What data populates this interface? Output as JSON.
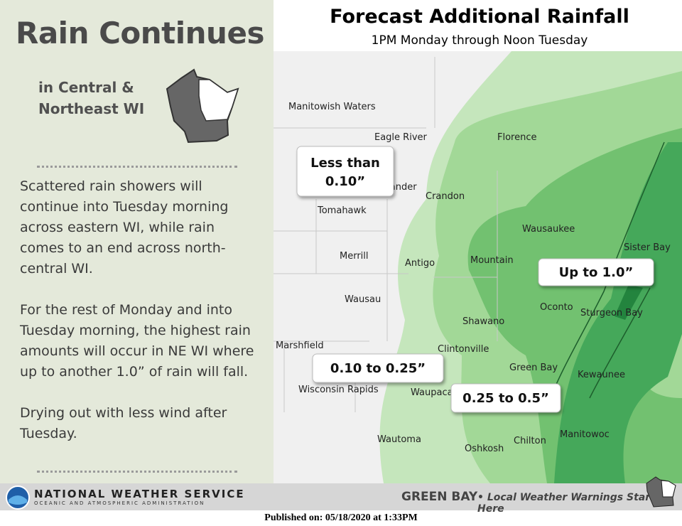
{
  "sidebar": {
    "title": "Rain Continues",
    "subtitle_lines": [
      "in Central &",
      "Northeast WI"
    ],
    "paragraphs": [
      "Scattered rain showers will continue into Tuesday morning across eastern WI, while rain comes to an end across north-central WI.",
      "For the rest of Monday and into Tuesday morning, the highest rain amounts will occur in NE WI where up to another 1.0” of rain will fall.",
      "Drying out with less wind after Tuesday."
    ]
  },
  "map": {
    "title": "Forecast Additional Rainfall",
    "subtitle": "1PM Monday through Noon Tuesday",
    "cities": [
      "Manitowish Waters",
      "Eagle River",
      "Florence",
      "Rhinelander",
      "Crandon",
      "Tomahawk",
      "Wausaukee",
      "Merrill",
      "Antigo",
      "Mountain",
      "Sister Bay",
      "Wausau",
      "Oconto",
      "Sturgeon Bay",
      "Shawano",
      "Marshfield",
      "Clintonville",
      "Green Bay",
      "Kewaunee",
      "Wisconsin Rapids",
      "Waupaca",
      "Wautoma",
      "Oshkosh",
      "Chilton",
      "Manitowoc"
    ],
    "range_labels": [
      [
        "Less than",
        "0.10”"
      ],
      [
        "Up to 1.0”"
      ],
      [
        "0.10 to 0.25”"
      ],
      [
        "0.25 to 0.5”"
      ]
    ]
  },
  "footer": {
    "agency": "NATIONAL WEATHER SERVICE",
    "agency_sub": "OCEANIC AND ATMOSPHERIC ADMINISTRATION",
    "office": "GREEN BAY",
    "tagline": "• Local Weather Warnings Start Here",
    "published": "Published on: 05/18/2020 at 1:33PM"
  }
}
